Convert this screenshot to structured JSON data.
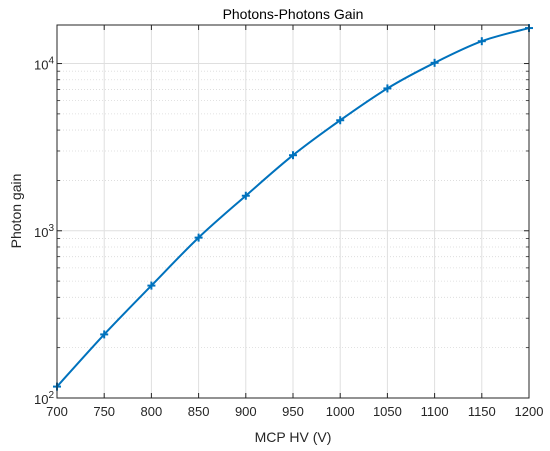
{
  "chart_data": {
    "type": "line",
    "title": "Photons-Photons Gain",
    "xlabel": "MCP HV (V)",
    "ylabel": "Photon gain",
    "xscale": "linear",
    "yscale": "log",
    "xlim": [
      700,
      1200
    ],
    "ylim": [
      100,
      17000
    ],
    "grid": true,
    "minor_grid_y": true,
    "x_ticks": [
      700,
      750,
      800,
      850,
      900,
      950,
      1000,
      1050,
      1100,
      1150,
      1200
    ],
    "x_tick_labels": [
      "700",
      "750",
      "800",
      "850",
      "900",
      "950",
      "1000",
      "1050",
      "1100",
      "1150",
      "1200"
    ],
    "y_ticks": [
      {
        "value": 100,
        "base": "10",
        "exp": "2"
      },
      {
        "value": 1000,
        "base": "10",
        "exp": "3"
      },
      {
        "value": 10000,
        "base": "10",
        "exp": "4"
      }
    ],
    "series": [
      {
        "color": "#0072BD",
        "marker": "plus",
        "x": [
          700,
          750,
          800,
          850,
          900,
          950,
          1000,
          1050,
          1100,
          1150,
          1200
        ],
        "y": [
          117,
          240,
          470,
          910,
          1620,
          2830,
          4580,
          7100,
          10100,
          13600,
          16300
        ]
      }
    ]
  }
}
